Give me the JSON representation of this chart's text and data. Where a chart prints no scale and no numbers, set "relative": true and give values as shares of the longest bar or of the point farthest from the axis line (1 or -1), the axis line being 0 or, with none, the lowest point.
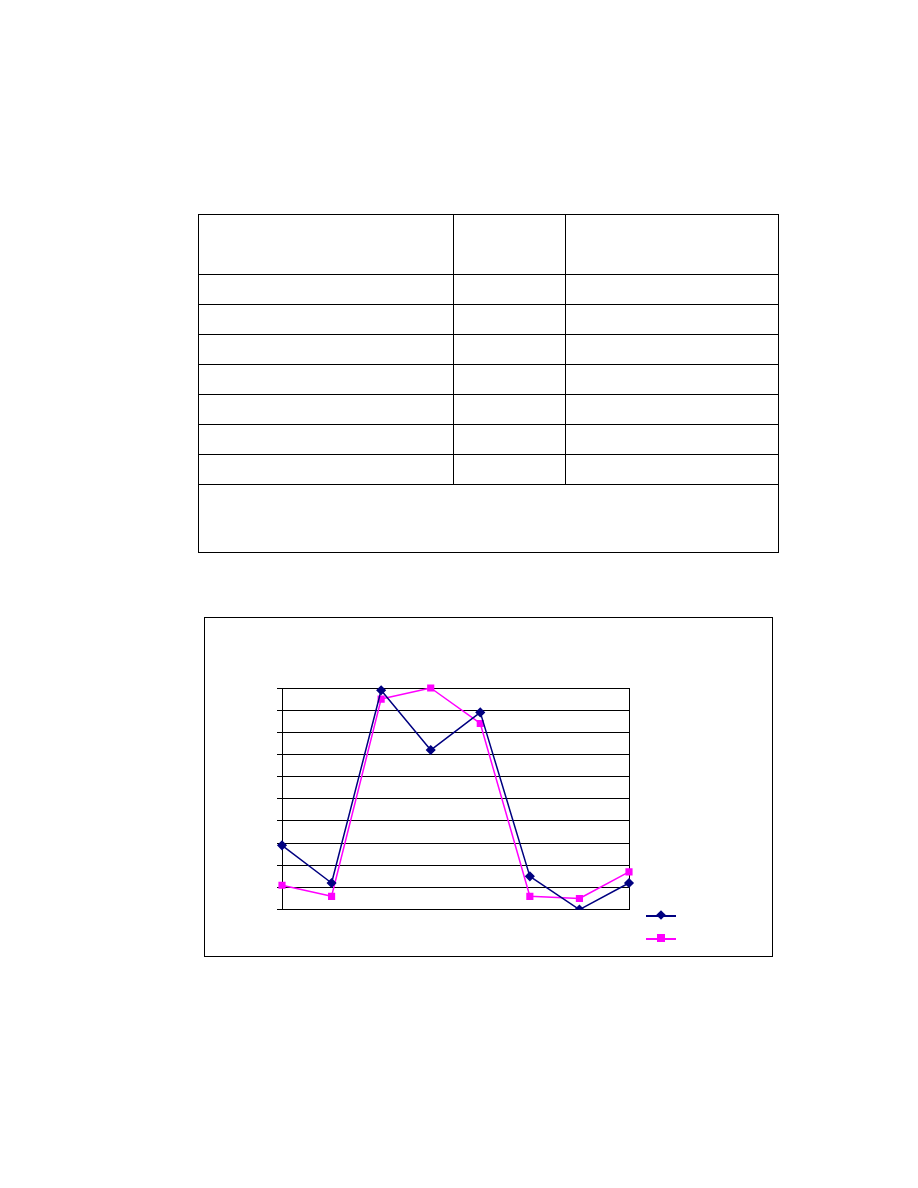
{
  "chart_data": {
    "type": "line",
    "relative": true,
    "categories": [
      null,
      null,
      null,
      null,
      null,
      null,
      null,
      null
    ],
    "series": [
      {
        "color": "#000080",
        "marker": "diamond",
        "values": [
          0.29,
          0.12,
          0.99,
          0.72,
          0.89,
          0.15,
          0,
          0.12
        ]
      },
      {
        "color": "#ff00ff",
        "marker": "square",
        "values": [
          0.11,
          0.06,
          0.95,
          1,
          0.84,
          0.06,
          0.05,
          0.17
        ]
      }
    ],
    "grid": "y"
  }
}
